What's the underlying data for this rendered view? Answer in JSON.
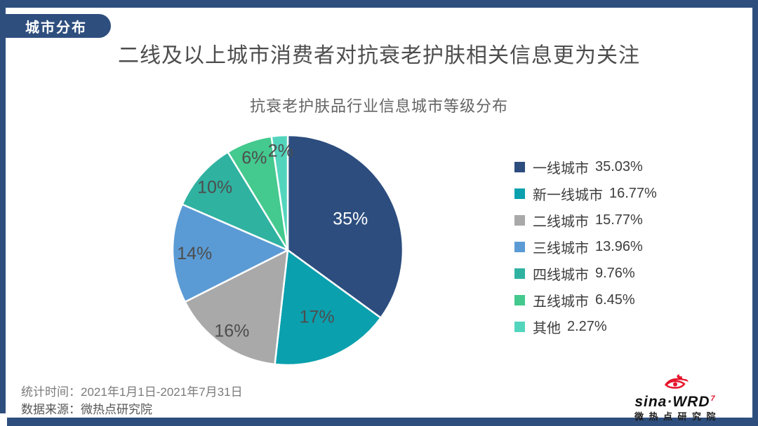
{
  "tag": {
    "label": "城市分布"
  },
  "title": "二线及以上城市消费者对抗衰老护肤相关信息更为关注",
  "subtitle": "抗衰老护肤品行业信息城市等级分布",
  "accent_color": "#2E4E7E",
  "chart_data": {
    "type": "pie",
    "title": "抗衰老护肤品行业信息城市等级分布",
    "start_angle_deg": 0,
    "direction": "clockwise",
    "categories": [
      "一线城市",
      "新一线城市",
      "二线城市",
      "三线城市",
      "四线城市",
      "五线城市",
      "其他"
    ],
    "values": [
      35.03,
      16.77,
      15.77,
      13.96,
      9.76,
      6.45,
      2.27
    ],
    "slice_labels": [
      "35%",
      "17%",
      "16%",
      "14%",
      "10%",
      "6%",
      "2%"
    ],
    "colors": [
      "#2C4D7E",
      "#0AA0AE",
      "#A9A9A9",
      "#5B9BD5",
      "#30B2A1",
      "#44C98E",
      "#53D5BD"
    ],
    "slice_label_colors": [
      "#FFFFFF",
      "#4D4D4D",
      "#4D4D4D",
      "#4D4D4D",
      "#4D4D4D",
      "#4D4D4D",
      "#4D4D4D"
    ],
    "label_radius_fractions": [
      0.61,
      0.63,
      0.85,
      0.81,
      0.84,
      0.86,
      0.87
    ],
    "legend_position": "right",
    "legend": [
      {
        "name": "一线城市",
        "value": "35.03%",
        "color": "#2C4D7E"
      },
      {
        "name": "新一线城市",
        "value": "16.77%",
        "color": "#0AA0AE"
      },
      {
        "name": "二线城市",
        "value": "15.77%",
        "color": "#A9A9A9"
      },
      {
        "name": "三线城市",
        "value": "13.96%",
        "color": "#5B9BD5"
      },
      {
        "name": "四线城市",
        "value": "9.76%",
        "color": "#30B2A1"
      },
      {
        "name": "五线城市",
        "value": "6.45%",
        "color": "#44C98E"
      },
      {
        "name": "其他",
        "value": "2.27%",
        "color": "#53D5BD"
      }
    ]
  },
  "footer": {
    "stat_time": "统计时间：2021年1月1日-2021年7月31日",
    "data_source": "数据来源：微热点研究院"
  },
  "logo": {
    "brand": "sina·WRD",
    "mark": "7",
    "sub": "微热点研究院",
    "red": "#E6162D"
  }
}
